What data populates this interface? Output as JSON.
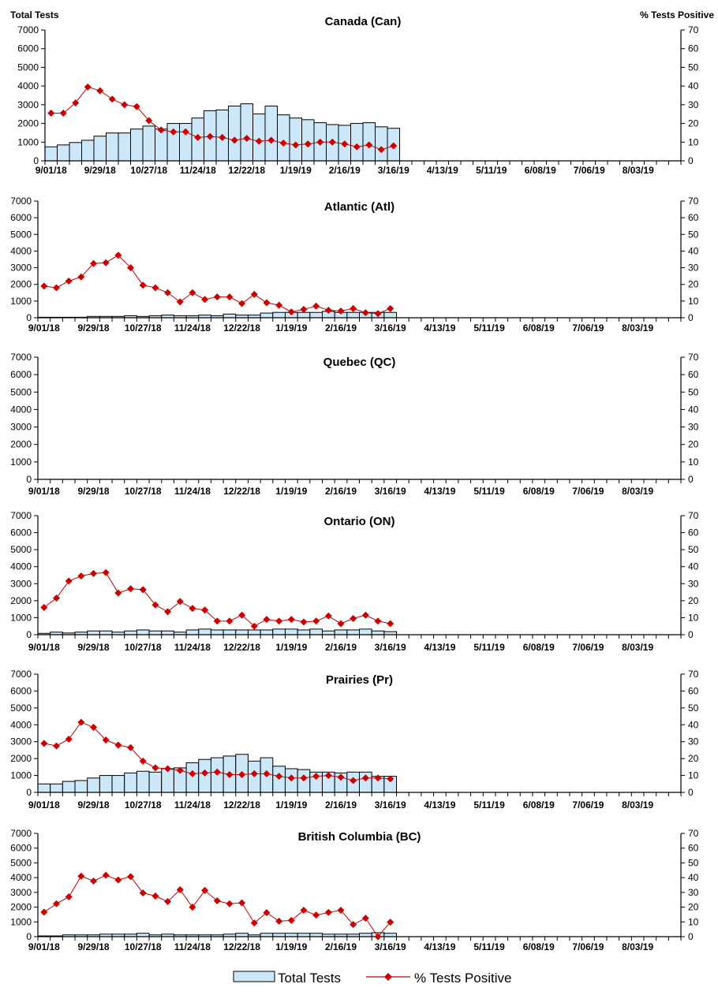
{
  "chart_data": [
    {
      "type": "bar+line",
      "title": "Canada (Can)",
      "ylabel_left": "Total Tests",
      "ylabel_right": "% Tests Positive",
      "bars": [
        750,
        850,
        980,
        1100,
        1320,
        1490,
        1490,
        1700,
        1860,
        1700,
        2000,
        2000,
        2290,
        2680,
        2720,
        2930,
        3050,
        2510,
        2930,
        2460,
        2290,
        2200,
        2040,
        1940,
        1900,
        2000,
        2040,
        1820,
        1740
      ],
      "line": [
        25.5,
        25.5,
        31,
        39.5,
        37.5,
        33,
        30,
        29,
        21.5,
        16.5,
        15.5,
        15.5,
        12.5,
        13,
        12.5,
        11,
        12,
        10.5,
        11,
        9.5,
        8.5,
        9,
        10,
        10,
        9,
        7.5,
        8.5,
        6,
        8
      ]
    },
    {
      "type": "bar+line",
      "title": "Atlantic (Atl)",
      "bars": [
        30,
        30,
        30,
        30,
        80,
        80,
        80,
        120,
        80,
        120,
        160,
        120,
        120,
        160,
        120,
        220,
        160,
        160,
        280,
        320,
        320,
        320,
        320,
        380,
        320,
        320,
        320,
        320,
        320
      ],
      "line": [
        19,
        18,
        22,
        24.5,
        32.5,
        33,
        37.5,
        30,
        19.5,
        18,
        15,
        9.5,
        15,
        11,
        12.5,
        12.5,
        8.5,
        14,
        9,
        7.5,
        3.5,
        5,
        7,
        4.5,
        4,
        5.5,
        3,
        2.5,
        5.5
      ]
    },
    {
      "type": "bar+line",
      "title": "Quebec (QC)",
      "bars": [],
      "line": []
    },
    {
      "type": "bar+line",
      "title": "Ontario (ON)",
      "bars": [
        80,
        150,
        100,
        150,
        220,
        220,
        150,
        220,
        280,
        220,
        220,
        150,
        280,
        330,
        280,
        280,
        280,
        280,
        280,
        330,
        330,
        280,
        330,
        220,
        280,
        280,
        330,
        220,
        180
      ],
      "line": [
        16,
        21.5,
        31.5,
        34.5,
        36,
        36.5,
        24.5,
        27,
        26.5,
        17.5,
        13.5,
        19.5,
        15.5,
        14.5,
        8,
        8,
        11.5,
        5,
        9,
        8,
        9,
        7.5,
        8,
        11,
        6.5,
        9.5,
        11.5,
        8,
        6.5
      ]
    },
    {
      "type": "bar+line",
      "title": "Prairies (Pr)",
      "bars": [
        500,
        500,
        650,
        700,
        850,
        1000,
        1000,
        1150,
        1250,
        1200,
        1400,
        1450,
        1750,
        1950,
        2050,
        2150,
        2250,
        1850,
        2050,
        1550,
        1400,
        1350,
        1200,
        1200,
        1150,
        1200,
        1200,
        950,
        950
      ],
      "line": [
        29,
        27.5,
        31.5,
        41.5,
        38.5,
        31,
        28,
        26.5,
        18.5,
        14.5,
        14,
        13,
        11,
        11.5,
        12,
        10.5,
        10.5,
        11,
        11,
        9.5,
        8.5,
        8.5,
        9.5,
        10,
        9,
        7,
        8.5,
        8.5,
        8
      ]
    },
    {
      "type": "bar+line",
      "title": "British Columbia (BC)",
      "bars": [
        50,
        50,
        120,
        120,
        120,
        170,
        170,
        170,
        230,
        120,
        170,
        120,
        120,
        120,
        120,
        170,
        230,
        120,
        230,
        230,
        230,
        230,
        230,
        170,
        170,
        170,
        230,
        270,
        230
      ],
      "line": [
        16.6,
        22.3,
        27,
        41,
        37.7,
        41.6,
        38.4,
        40.7,
        29.6,
        27.5,
        23.8,
        31.8,
        20,
        31.3,
        24.3,
        22.3,
        22.9,
        9.3,
        16.3,
        10.5,
        11,
        17.9,
        14.6,
        16.4,
        17.9,
        8.2,
        12.5,
        0,
        9.8
      ]
    }
  ],
  "axes": {
    "y_left": {
      "range": [
        0,
        7000
      ],
      "ticks": [
        "0",
        "1000",
        "2000",
        "3000",
        "4000",
        "5000",
        "6000",
        "7000"
      ]
    },
    "y_right": {
      "range": [
        0,
        70
      ],
      "ticks": [
        "0",
        "10",
        "20",
        "30",
        "40",
        "50",
        "60",
        "70"
      ]
    },
    "x_weeks": 52,
    "x_ticks": [
      "9/01/18",
      "9/29/18",
      "10/27/18",
      "11/24/18",
      "12/22/18",
      "1/19/19",
      "2/16/19",
      "3/16/19",
      "4/13/19",
      "5/11/19",
      "6/08/19",
      "7/06/19",
      "8/03/19"
    ],
    "grid": false
  },
  "legend": {
    "placement": "bottom",
    "bars_label": "Total Tests",
    "line_label": "% Tests Positive"
  },
  "colors": {
    "bar_fill": "#cce8f8",
    "bar_stroke": "#000000",
    "line": "#c00000",
    "marker": "#cc0000"
  }
}
